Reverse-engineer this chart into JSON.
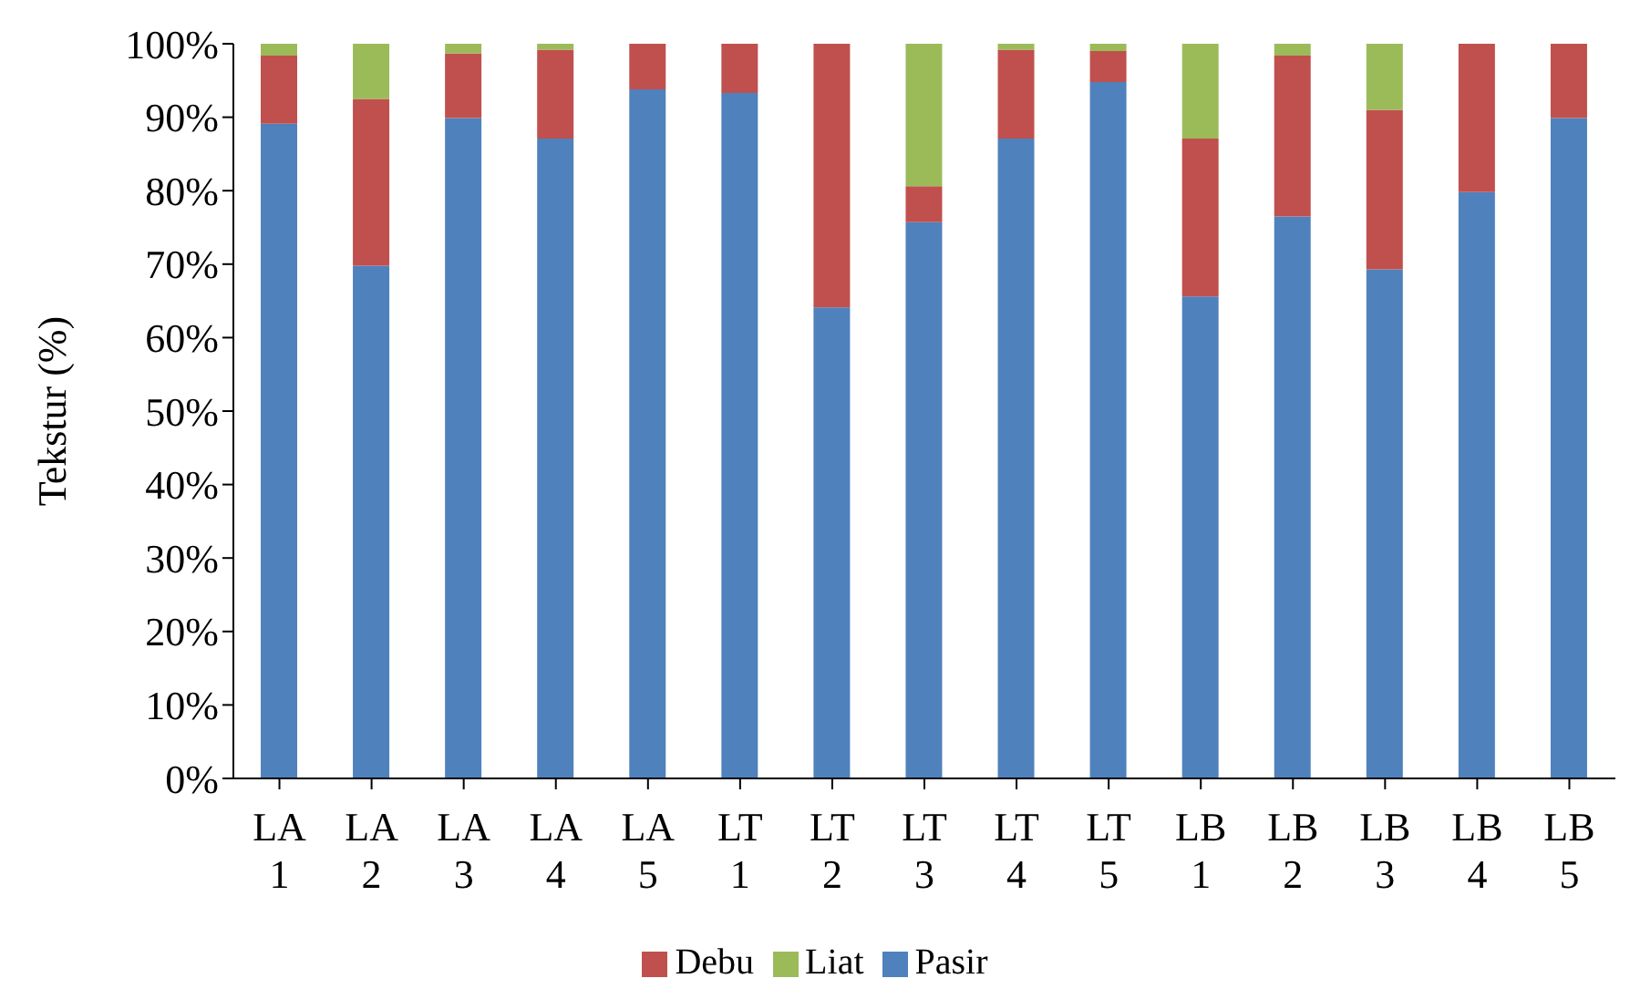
{
  "chart_data": {
    "type": "bar",
    "stacked": true,
    "ylabel": "Tekstur (%)",
    "categories": [
      "LA 1",
      "LA 2",
      "LA 3",
      "LA 4",
      "LA 5",
      "LT 1",
      "LT 2",
      "LT 3",
      "LT 4",
      "LT 5",
      "LB 1",
      "LB 2",
      "LB 3",
      "LB 4",
      "LB 5"
    ],
    "series": [
      {
        "name": "Pasir",
        "color": "#4f81bd",
        "values": [
          89.1,
          69.8,
          89.9,
          87.1,
          93.8,
          93.3,
          64.1,
          75.7,
          87.1,
          94.8,
          65.6,
          76.5,
          69.3,
          79.8,
          89.9
        ]
      },
      {
        "name": "Debu",
        "color": "#c0504d",
        "values": [
          9.3,
          22.7,
          8.8,
          12.1,
          6.2,
          6.7,
          35.9,
          4.9,
          12.1,
          4.2,
          21.5,
          21.9,
          21.7,
          20.2,
          10.1
        ]
      },
      {
        "name": "Liat",
        "color": "#9bbb59",
        "values": [
          1.6,
          7.5,
          1.3,
          0.8,
          0,
          0,
          0,
          19.4,
          0.8,
          1,
          12.9,
          1.6,
          9,
          0,
          0
        ]
      }
    ],
    "ylim": [
      0,
      100
    ],
    "yticks": [
      {
        "value": 0,
        "label": "0%"
      },
      {
        "value": 10,
        "label": "10%"
      },
      {
        "value": 20,
        "label": "20%"
      },
      {
        "value": 30,
        "label": "30%"
      },
      {
        "value": 40,
        "label": "40%"
      },
      {
        "value": 50,
        "label": "50%"
      },
      {
        "value": 60,
        "label": "60%"
      },
      {
        "value": 70,
        "label": "70%"
      },
      {
        "value": 80,
        "label": "80%"
      },
      {
        "value": 90,
        "label": "90%"
      },
      {
        "value": 100,
        "label": "100%"
      }
    ],
    "grid": false,
    "legend": "bottom"
  }
}
